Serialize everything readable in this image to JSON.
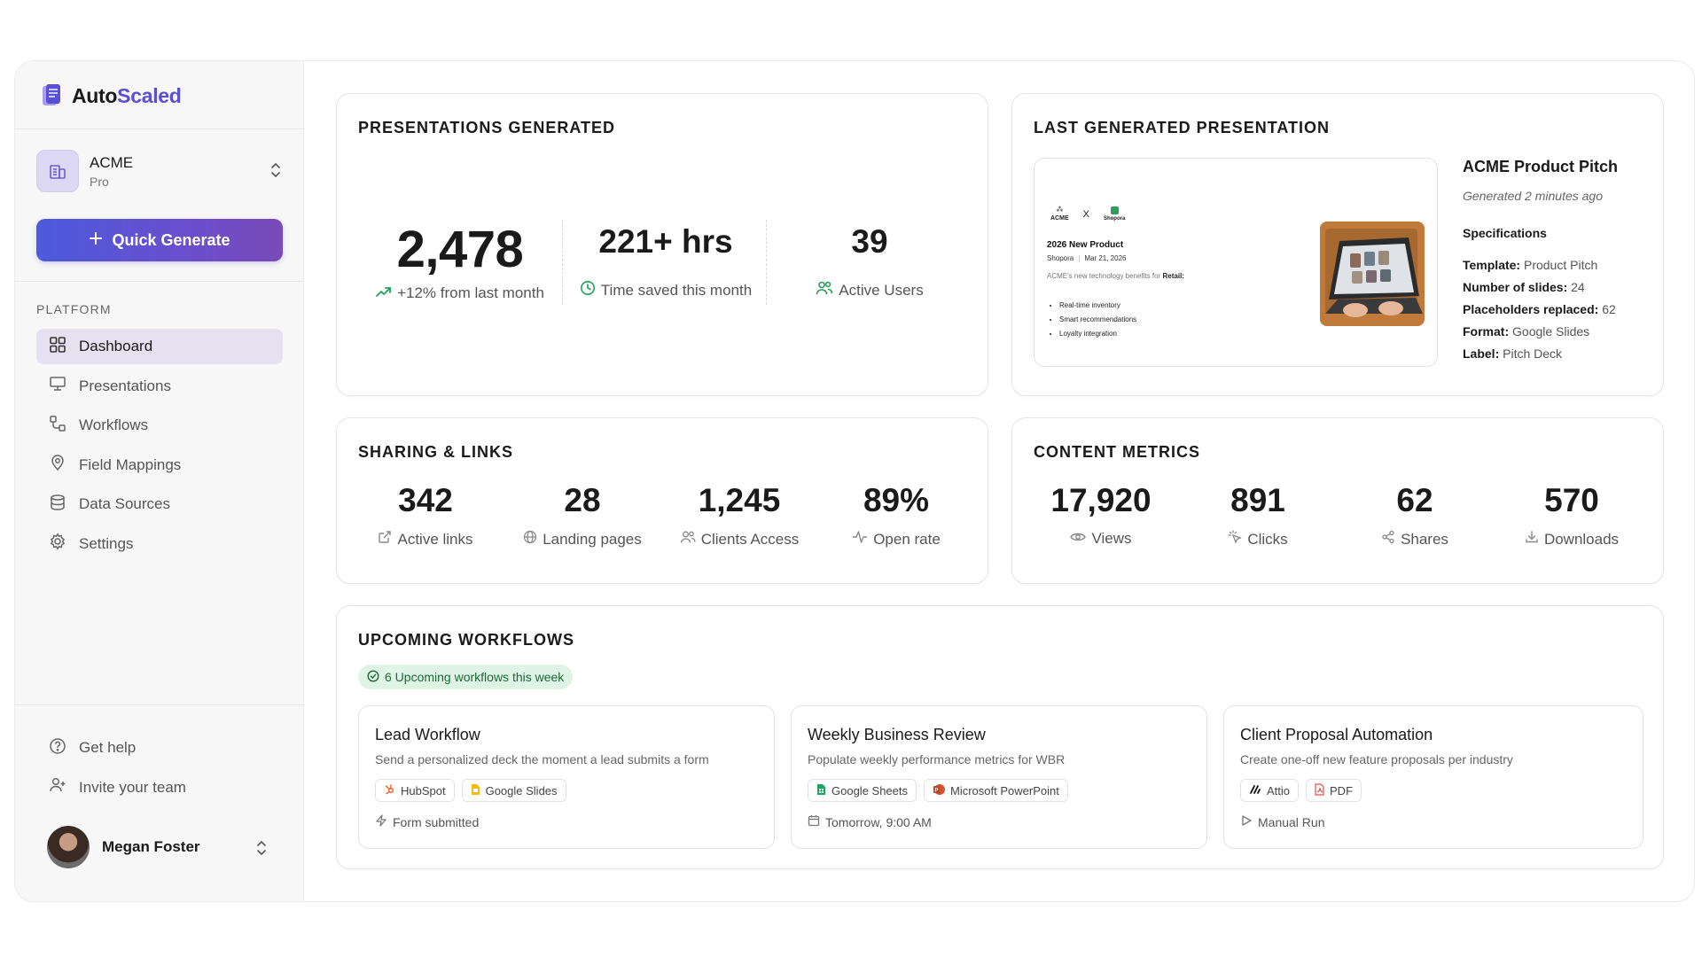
{
  "brand": {
    "name_part1": "Auto",
    "name_part2": "Scaled",
    "accent": "#5b4fd6"
  },
  "org": {
    "name": "ACME",
    "plan": "Pro"
  },
  "quick_generate": {
    "label": "Quick Generate"
  },
  "sidebar": {
    "section_label": "PLATFORM",
    "items": [
      {
        "label": "Dashboard",
        "icon": "grid-icon",
        "active": true
      },
      {
        "label": "Presentations",
        "icon": "presentation-icon"
      },
      {
        "label": "Workflows",
        "icon": "workflow-icon"
      },
      {
        "label": "Field Mappings",
        "icon": "map-pin-icon"
      },
      {
        "label": "Data Sources",
        "icon": "database-icon"
      },
      {
        "label": "Settings",
        "icon": "gear-icon"
      }
    ],
    "bottom_items": [
      {
        "label": "Get help",
        "icon": "help-icon"
      },
      {
        "label": "Invite your team",
        "icon": "user-plus-icon"
      }
    ]
  },
  "user": {
    "name": "Megan Foster"
  },
  "presentations_generated": {
    "title": "PRESENTATIONS GENERATED",
    "total": "2,478",
    "total_sub": "+12% from last month",
    "time_saved": "221+ hrs",
    "time_saved_sub": "Time saved this month",
    "active_users": "39",
    "active_users_sub": "Active Users"
  },
  "last_generated": {
    "title": "LAST GENERATED PRESENTATION",
    "preview": {
      "logo_left": "ACME",
      "x_mark": "X",
      "logo_right": "Shopora",
      "heading": "2026 New Product",
      "meta_company": "Shopora",
      "meta_date": "Mar 21, 2026",
      "intro": "ACME's new technology benefits for",
      "intro_bold": "Retail:",
      "bullets": [
        "Real-time inventory",
        "Smart recommendations",
        "Loyalty integration"
      ]
    },
    "name": "ACME Product Pitch",
    "generated": "Generated 2 minutes ago",
    "spec_heading": "Specifications",
    "specs": [
      {
        "label": "Template:",
        "value": "Product Pitch"
      },
      {
        "label": "Number of slides:",
        "value": "24"
      },
      {
        "label": "Placeholders replaced:",
        "value": "62"
      },
      {
        "label": "Format:",
        "value": "Google Slides"
      },
      {
        "label": "Label:",
        "value": "Pitch Deck"
      }
    ]
  },
  "sharing": {
    "title": "SHARING & LINKS",
    "metrics": [
      {
        "value": "342",
        "label": "Active links",
        "icon": "external-link-icon"
      },
      {
        "value": "28",
        "label": "Landing pages",
        "icon": "globe-icon"
      },
      {
        "value": "1,245",
        "label": "Clients Access",
        "icon": "users-icon"
      },
      {
        "value": "89%",
        "label": "Open rate",
        "icon": "activity-icon"
      }
    ]
  },
  "content_metrics": {
    "title": "CONTENT METRICS",
    "metrics": [
      {
        "value": "17,920",
        "label": "Views",
        "icon": "eye-icon"
      },
      {
        "value": "891",
        "label": "Clicks",
        "icon": "click-icon"
      },
      {
        "value": "62",
        "label": "Shares",
        "icon": "share-icon"
      },
      {
        "value": "570",
        "label": "Downloads",
        "icon": "download-icon"
      }
    ]
  },
  "workflows": {
    "title": "UPCOMING WORKFLOWS",
    "badge": "6 Upcoming workflows this week",
    "items": [
      {
        "title": "Lead Workflow",
        "desc": "Send a personalized deck the moment a lead submits a form",
        "tags": [
          "HubSpot",
          "Google Slides"
        ],
        "trigger": "Form submitted"
      },
      {
        "title": "Weekly Business Review",
        "desc": "Populate weekly performance metrics for WBR",
        "tags": [
          "Google Sheets",
          "Microsoft PowerPoint"
        ],
        "trigger": "Tomorrow, 9:00 AM"
      },
      {
        "title": "Client Proposal Automation",
        "desc": "Create one-off new feature proposals per industry",
        "tags": [
          "Attio",
          "PDF"
        ],
        "trigger": "Manual Run"
      }
    ]
  }
}
